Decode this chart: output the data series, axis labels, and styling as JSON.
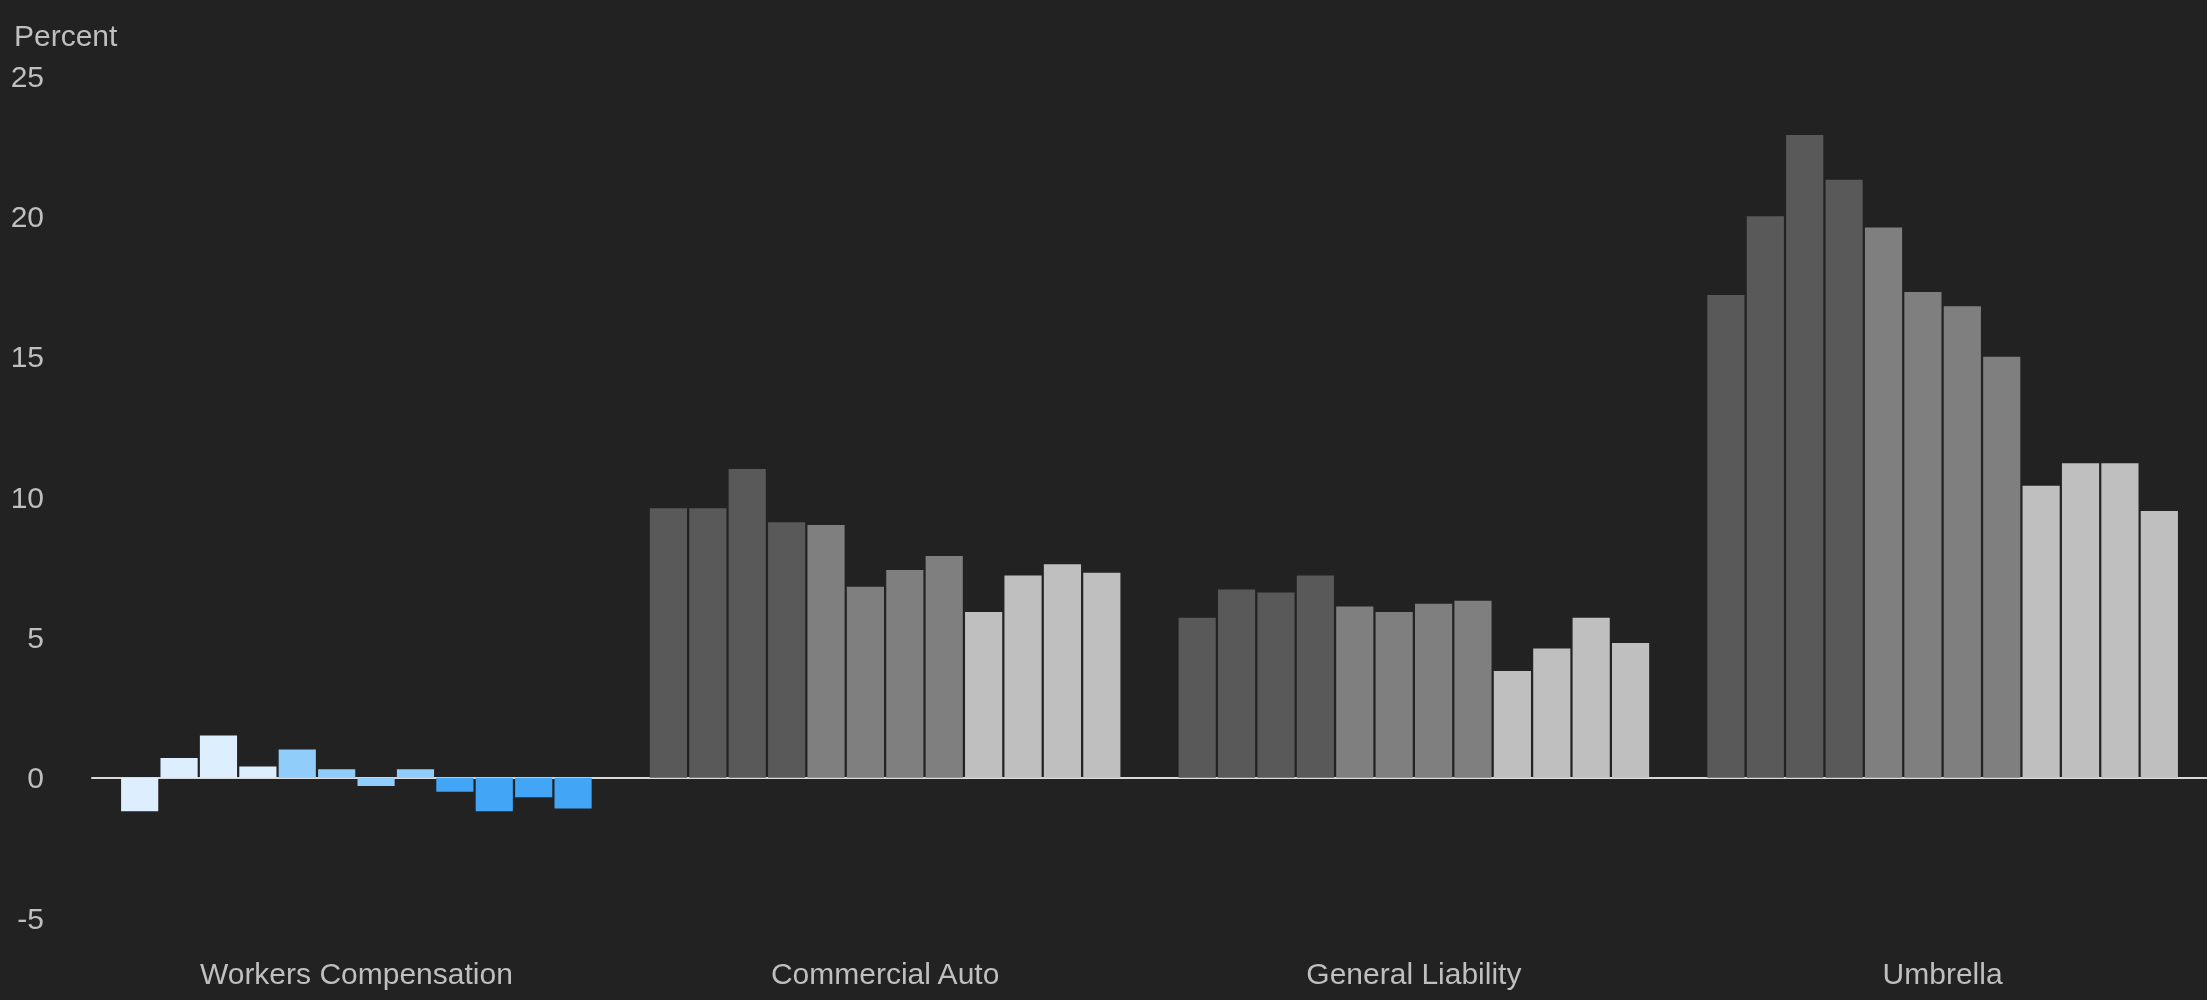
{
  "chart_data": {
    "type": "bar",
    "ylabel": "Percent",
    "categories": [
      "Workers Compensation",
      "Commercial Auto",
      "General Liability",
      "Umbrella"
    ],
    "series": [
      {
        "colors": [
          "#ddeeff",
          "#595959",
          "#595959",
          "#595959"
        ],
        "values": [
          -1.2,
          9.6,
          5.7,
          17.2
        ]
      },
      {
        "colors": [
          "#ddeeff",
          "#595959",
          "#595959",
          "#595959"
        ],
        "values": [
          0.7,
          9.6,
          6.7,
          20.0
        ]
      },
      {
        "colors": [
          "#ddeeff",
          "#595959",
          "#595959",
          "#595959"
        ],
        "values": [
          1.5,
          11.0,
          6.6,
          22.9
        ]
      },
      {
        "colors": [
          "#ddeeff",
          "#595959",
          "#595959",
          "#595959"
        ],
        "values": [
          0.4,
          9.1,
          7.2,
          21.3
        ]
      },
      {
        "colors": [
          "#90cdfb",
          "#7f7f7f",
          "#7f7f7f",
          "#7f7f7f"
        ],
        "values": [
          1.0,
          9.0,
          6.1,
          19.6
        ]
      },
      {
        "colors": [
          "#90cdfb",
          "#7f7f7f",
          "#7f7f7f",
          "#7f7f7f"
        ],
        "values": [
          0.3,
          6.8,
          5.9,
          17.3
        ]
      },
      {
        "colors": [
          "#90cdfb",
          "#7f7f7f",
          "#7f7f7f",
          "#7f7f7f"
        ],
        "values": [
          -0.3,
          7.4,
          6.2,
          16.8
        ]
      },
      {
        "colors": [
          "#90cdfb",
          "#7f7f7f",
          "#7f7f7f",
          "#7f7f7f"
        ],
        "values": [
          0.3,
          7.9,
          6.3,
          15.0
        ]
      },
      {
        "colors": [
          "#42a5f5",
          "#bfbfbf",
          "#bfbfbf",
          "#bfbfbf"
        ],
        "values": [
          -0.5,
          5.9,
          3.8,
          10.4
        ]
      },
      {
        "colors": [
          "#42a5f5",
          "#bfbfbf",
          "#bfbfbf",
          "#bfbfbf"
        ],
        "values": [
          -1.2,
          7.2,
          4.6,
          11.2
        ]
      },
      {
        "colors": [
          "#42a5f5",
          "#bfbfbf",
          "#bfbfbf",
          "#bfbfbf"
        ],
        "values": [
          -0.7,
          7.6,
          5.7,
          11.2
        ]
      },
      {
        "colors": [
          "#42a5f5",
          "#bfbfbf",
          "#bfbfbf",
          "#bfbfbf"
        ],
        "values": [
          -1.1,
          7.3,
          4.8,
          9.5
        ]
      }
    ],
    "ylim": [
      -5,
      25
    ],
    "yticks": [
      -5,
      0,
      5,
      10,
      15,
      20,
      25
    ]
  }
}
